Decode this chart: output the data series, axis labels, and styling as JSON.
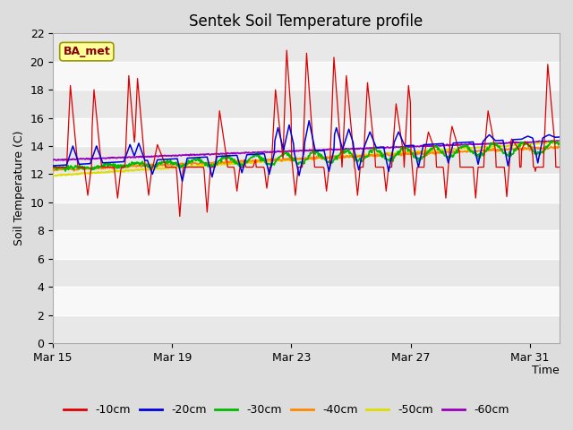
{
  "title": "Sentek Soil Temperature profile",
  "ylabel": "Soil Temperature (C)",
  "xlabel": "Time",
  "annotation": "BA_met",
  "ylim": [
    0,
    22
  ],
  "yticks": [
    0,
    2,
    4,
    6,
    8,
    10,
    12,
    14,
    16,
    18,
    20,
    22
  ],
  "xtick_labels": [
    "Mar 15",
    "Mar 19",
    "Mar 23",
    "Mar 27",
    "Mar 31"
  ],
  "xtick_positions": [
    0,
    4,
    8,
    12,
    16
  ],
  "colors": {
    "-10cm": "#dd0000",
    "-20cm": "#0000dd",
    "-30cm": "#00bb00",
    "-40cm": "#ff8800",
    "-50cm": "#dddd00",
    "-60cm": "#9900bb"
  },
  "legend_labels": [
    "-10cm",
    "-20cm",
    "-30cm",
    "-40cm",
    "-50cm",
    "-60cm"
  ],
  "bg_color": "#ffffff",
  "plot_bg_color": "#ffffff",
  "outer_bg": "#dddddd",
  "title_fontsize": 12,
  "axis_fontsize": 9,
  "tick_fontsize": 9,
  "n_days": 17
}
